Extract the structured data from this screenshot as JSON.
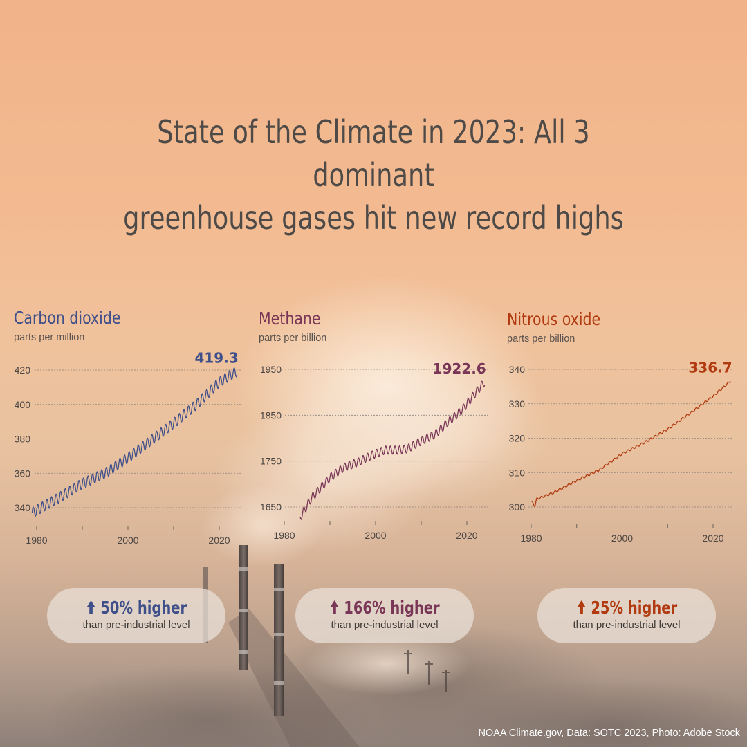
{
  "title_line1": "State of the Climate in 2023: All 3 dominant",
  "title_line2": "greenhouse gases hit new record highs",
  "credit": "NOAA Climate.gov, Data: SOTC 2023, Photo: Adobe Stock",
  "charts": [
    {
      "title": "Carbon dioxide",
      "unit": "parts per million",
      "color": "#3f4f8a",
      "badge_icon": "arrow-up-icon",
      "badge_text": "50% higher",
      "badge_sub": "than pre-industrial level"
    },
    {
      "title": "Methane",
      "unit": "parts per billion",
      "color": "#7a3656",
      "badge_icon": "arrow-up-icon",
      "badge_text": "166% higher",
      "badge_sub": "than pre-industrial level"
    },
    {
      "title": "Nitrous oxide",
      "unit": "parts per billion",
      "color": "#b13a10",
      "badge_icon": "arrow-up-icon",
      "badge_text": "25% higher",
      "badge_sub": "than pre-industrial level"
    }
  ],
  "chart_data": [
    {
      "type": "line",
      "title": "Carbon dioxide",
      "ylabel": "parts per million",
      "xlim": [
        1979,
        2024
      ],
      "ylim": [
        333,
        424
      ],
      "yticks": [
        340,
        360,
        380,
        400,
        420
      ],
      "xticks": [
        1980,
        2000,
        2020
      ],
      "x_minor_ticks": [
        1990,
        2010
      ],
      "grid": "horizontal dashed",
      "seasonal_amplitude": 3,
      "series": [
        {
          "x": [
            1979,
            1985,
            1990,
            1995,
            2000,
            2005,
            2010,
            2015,
            2020,
            2023.9
          ],
          "y": [
            337,
            346,
            354,
            360,
            369,
            379,
            389,
            400,
            413,
            419.3
          ]
        }
      ],
      "last_label": "419.3"
    },
    {
      "type": "line",
      "title": "Methane",
      "ylabel": "parts per billion",
      "xlim": [
        1979,
        2024
      ],
      "ylim": [
        1620,
        1970
      ],
      "yticks": [
        1650,
        1750,
        1850,
        1950
      ],
      "xticks": [
        1980,
        2000,
        2020
      ],
      "x_minor_ticks": [
        1990,
        2010
      ],
      "grid": "horizontal dashed",
      "seasonal_amplitude": 9,
      "series": [
        {
          "x": [
            1983.5,
            1986,
            1990,
            1993,
            1996,
            1999,
            2002,
            2005,
            2007,
            2010,
            2013,
            2016,
            2019,
            2022,
            2023.9
          ],
          "y": [
            1628,
            1670,
            1714,
            1736,
            1747,
            1762,
            1774,
            1774,
            1777,
            1794,
            1808,
            1836,
            1862,
            1900,
            1922.6
          ]
        }
      ],
      "last_label": "1922.6"
    },
    {
      "type": "line",
      "title": "Nitrous oxide",
      "ylabel": "parts per billion",
      "xlim": [
        1979,
        2024
      ],
      "ylim": [
        295,
        342
      ],
      "yticks": [
        300,
        310,
        320,
        330,
        340
      ],
      "xticks": [
        1980,
        2000,
        2020
      ],
      "x_minor_ticks": [
        1990,
        2010
      ],
      "grid": "horizontal dashed",
      "seasonal_amplitude": 0.3,
      "series": [
        {
          "x": [
            1980,
            1980.8,
            1981.2,
            1985,
            1990,
            1995,
            2000,
            2005,
            2010,
            2015,
            2020,
            2023.9
          ],
          "y": [
            301.7,
            300.3,
            302.3,
            304.2,
            307.7,
            310.8,
            315.5,
            318.8,
            322.6,
            327.3,
            332.2,
            336.7
          ]
        }
      ],
      "last_label": "336.7"
    }
  ]
}
